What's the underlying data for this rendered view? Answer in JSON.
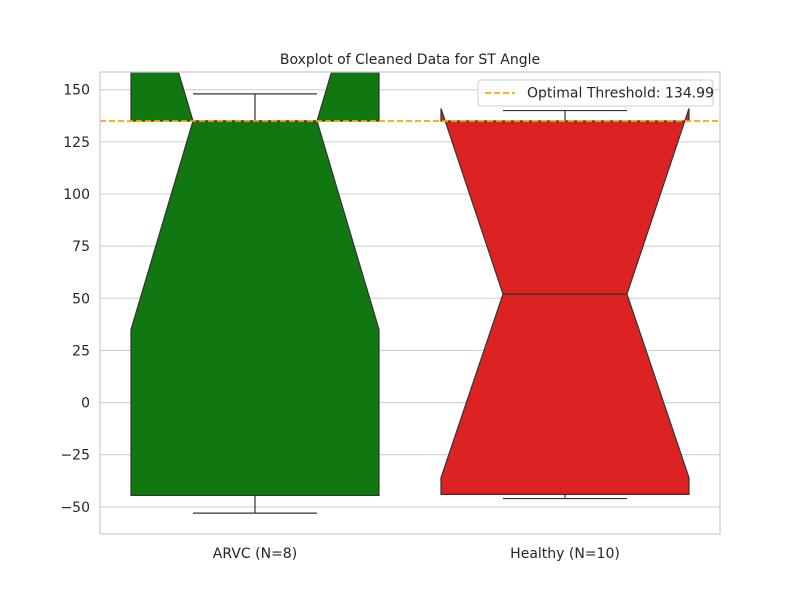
{
  "chart_data": {
    "type": "boxplot",
    "title": "Boxplot of Cleaned Data for ST Angle",
    "xlabel": "",
    "ylabel": "",
    "ylim": [
      -63,
      158.5
    ],
    "yticks": [
      -50,
      -25,
      0,
      25,
      50,
      75,
      100,
      125,
      150
    ],
    "ytick_labels": [
      "−50",
      "−25",
      "0",
      "25",
      "50",
      "75",
      "100",
      "125",
      "150"
    ],
    "notched": true,
    "grid": true,
    "groups": [
      {
        "label": "ARVC (N=8)",
        "color": "#117711",
        "whisker_low": -53,
        "q1": -44.5,
        "median": 135,
        "q3": 135,
        "whisker_high": 148,
        "notch_low": 35,
        "notch_high": 235
      },
      {
        "label": "Healthy (N=10)",
        "color": "#dd2222",
        "whisker_low": -46,
        "q1": -44,
        "median": 52,
        "q3": 135,
        "whisker_high": 140,
        "notch_low": -36,
        "notch_high": 141
      }
    ],
    "threshold": {
      "value": 134.99,
      "color": "#ffa500",
      "label": "Optimal Threshold: 134.99"
    },
    "legend": {
      "position": "top-right"
    }
  }
}
